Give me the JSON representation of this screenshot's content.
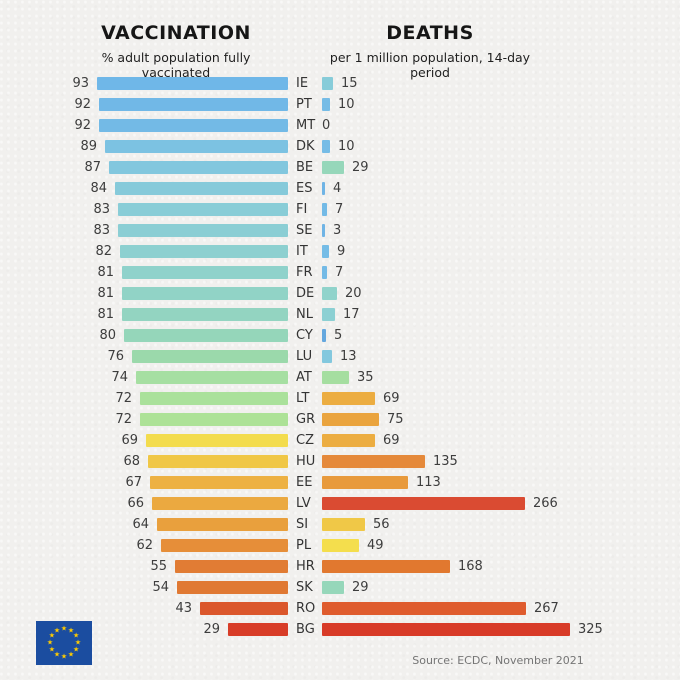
{
  "header": {
    "left": {
      "title": "VACCINATION",
      "subtitle": "% adult population fully vaccinated"
    },
    "right": {
      "title": "DEATHS",
      "subtitle": "per 1 million population, 14-day period"
    }
  },
  "source": "Source: ECDC, November 2021",
  "footer": {
    "eu_flag": {
      "name": "eu-flag",
      "background": "#1b4da0",
      "star_color": "#ffcc00",
      "stars": 12
    }
  },
  "chart_data": {
    "type": "bar",
    "orientation": "horizontal",
    "title_left": "VACCINATION — % adult population fully vaccinated",
    "title_right": "DEATHS — per 1 million population, 14-day period",
    "categories": [
      "IE",
      "PT",
      "MT",
      "DK",
      "BE",
      "ES",
      "FI",
      "SE",
      "IT",
      "FR",
      "DE",
      "NL",
      "CY",
      "LU",
      "AT",
      "LT",
      "GR",
      "CZ",
      "HU",
      "EE",
      "LV",
      "SI",
      "PL",
      "HR",
      "SK",
      "RO",
      "BG"
    ],
    "series": [
      {
        "name": "Vaccination (% adult population fully vaccinated)",
        "values": [
          93,
          92,
          92,
          89,
          87,
          84,
          83,
          83,
          82,
          81,
          81,
          81,
          80,
          76,
          74,
          72,
          72,
          69,
          68,
          67,
          66,
          64,
          62,
          55,
          54,
          43,
          29
        ]
      },
      {
        "name": "Deaths (per 1 million population, 14-day period)",
        "values": [
          15,
          10,
          0,
          10,
          29,
          4,
          7,
          3,
          9,
          7,
          20,
          17,
          5,
          13,
          35,
          69,
          75,
          69,
          135,
          113,
          266,
          56,
          49,
          168,
          29,
          267,
          325
        ]
      }
    ],
    "xlim_vaccination": [
      0,
      93
    ],
    "xlim_deaths": [
      0,
      325
    ],
    "grid": false,
    "legend": "none",
    "rows": [
      {
        "code": "IE",
        "vaccination": 93,
        "vacc_color": "#6fb7e8",
        "deaths": 15,
        "death_color": "#87ccd9"
      },
      {
        "code": "PT",
        "vaccination": 92,
        "vacc_color": "#71b8e7",
        "deaths": 10,
        "death_color": "#76bce6"
      },
      {
        "code": "MT",
        "vaccination": 92,
        "vacc_color": "#73bae6",
        "deaths": 0,
        "death_color": "#76bce6"
      },
      {
        "code": "DK",
        "vaccination": 89,
        "vacc_color": "#7cc2e2",
        "deaths": 10,
        "death_color": "#76bce6"
      },
      {
        "code": "BE",
        "vaccination": 87,
        "vacc_color": "#82c7de",
        "deaths": 29,
        "death_color": "#96d7ba"
      },
      {
        "code": "ES",
        "vaccination": 84,
        "vacc_color": "#86cada",
        "deaths": 4,
        "death_color": "#6fb4e5"
      },
      {
        "code": "FI",
        "vaccination": 83,
        "vacc_color": "#89cdd7",
        "deaths": 7,
        "death_color": "#73bae6"
      },
      {
        "code": "SE",
        "vaccination": 83,
        "vacc_color": "#8bced4",
        "deaths": 3,
        "death_color": "#6fb4e5"
      },
      {
        "code": "IT",
        "vaccination": 82,
        "vacc_color": "#8dd0d0",
        "deaths": 9,
        "death_color": "#75bce6"
      },
      {
        "code": "FR",
        "vaccination": 81,
        "vacc_color": "#8fd2cb",
        "deaths": 7,
        "death_color": "#73bae6"
      },
      {
        "code": "DE",
        "vaccination": 81,
        "vacc_color": "#91d3c6",
        "deaths": 20,
        "death_color": "#90d3cb"
      },
      {
        "code": "NL",
        "vaccination": 81,
        "vacc_color": "#93d4c1",
        "deaths": 17,
        "death_color": "#8cd0d3"
      },
      {
        "code": "CY",
        "vaccination": 80,
        "vacc_color": "#95d6ba",
        "deaths": 5,
        "death_color": "#64a7de"
      },
      {
        "code": "LU",
        "vaccination": 76,
        "vacc_color": "#9bd9ab",
        "deaths": 13,
        "death_color": "#83c8de"
      },
      {
        "code": "AT",
        "vaccination": 74,
        "vacc_color": "#a6dfa2",
        "deaths": 35,
        "death_color": "#a5dea0"
      },
      {
        "code": "LT",
        "vaccination": 72,
        "vacc_color": "#aae19b",
        "deaths": 69,
        "death_color": "#ecad41"
      },
      {
        "code": "GR",
        "vaccination": 72,
        "vacc_color": "#ade297",
        "deaths": 75,
        "death_color": "#eaa43e"
      },
      {
        "code": "CZ",
        "vaccination": 69,
        "vacc_color": "#f3dc4d",
        "deaths": 69,
        "death_color": "#ecad41"
      },
      {
        "code": "HU",
        "vaccination": 68,
        "vacc_color": "#f0c746",
        "deaths": 135,
        "death_color": "#e5893a"
      },
      {
        "code": "EE",
        "vaccination": 67,
        "vacc_color": "#edb143",
        "deaths": 113,
        "death_color": "#e89a3c"
      },
      {
        "code": "LV",
        "vaccination": 66,
        "vacc_color": "#eba940",
        "deaths": 266,
        "death_color": "#da4b32"
      },
      {
        "code": "SI",
        "vaccination": 64,
        "vacc_color": "#e9a03d",
        "deaths": 56,
        "death_color": "#f0c847"
      },
      {
        "code": "PL",
        "vaccination": 62,
        "vacc_color": "#e68e39",
        "deaths": 49,
        "death_color": "#f4de4d"
      },
      {
        "code": "HR",
        "vaccination": 55,
        "vacc_color": "#e17c34",
        "deaths": 168,
        "death_color": "#e1782f"
      },
      {
        "code": "SK",
        "vaccination": 54,
        "vacc_color": "#e07933",
        "deaths": 29,
        "death_color": "#96d7ba"
      },
      {
        "code": "RO",
        "vaccination": 43,
        "vacc_color": "#db572c",
        "deaths": 267,
        "death_color": "#df5c2e"
      },
      {
        "code": "BG",
        "vaccination": 29,
        "vacc_color": "#d83d28",
        "deaths": 325,
        "death_color": "#d83b28"
      }
    ]
  }
}
